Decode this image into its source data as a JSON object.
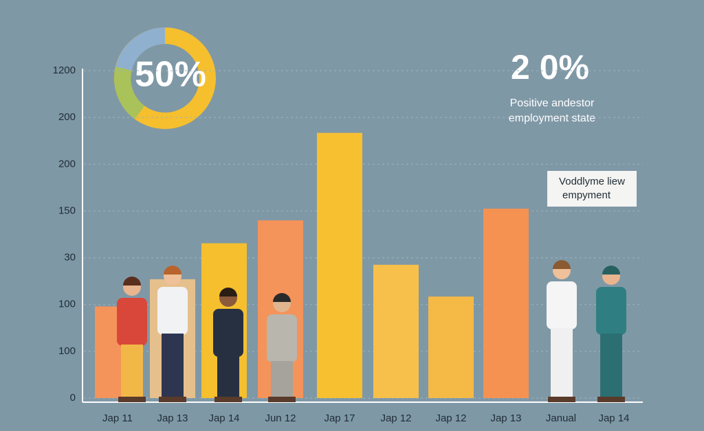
{
  "chart_data": {
    "type": "bar",
    "categories": [
      "Jap 11",
      "Jap 13",
      "Jap 14",
      "Jun 12",
      "Jap 17",
      "Jap 12",
      "Jap 12",
      "Jap 13",
      "Janual",
      "Jap 14"
    ],
    "values": [
      1.96,
      2.54,
      3.31,
      3.8,
      5.67,
      2.85,
      2.17,
      4.05,
      null,
      null
    ],
    "colors": [
      "#f4935a",
      "#e6c08c",
      "#f5bf2e",
      "#f4935a",
      "#f7c031",
      "#f7c04a",
      "#f5b946",
      "#f59252",
      "#f59252",
      "#f59252"
    ],
    "ylim": [
      0,
      7
    ],
    "yticks": [
      {
        "value": 0,
        "label": "0"
      },
      {
        "value": 1,
        "label": "100"
      },
      {
        "value": 2,
        "label": "100"
      },
      {
        "value": 3,
        "label": "30"
      },
      {
        "value": 4,
        "label": "150"
      },
      {
        "value": 5,
        "label": "200"
      },
      {
        "value": 6,
        "label": "200"
      },
      {
        "value": 7,
        "label": "1200"
      }
    ],
    "grid": true,
    "annotations": {
      "donut": "50%",
      "big_percent": "2 0%",
      "caption_line1": "Positive andestor",
      "caption_line2": "employment state",
      "box_line1": "Voddlyme liew",
      "box_line2": "empyment"
    }
  }
}
